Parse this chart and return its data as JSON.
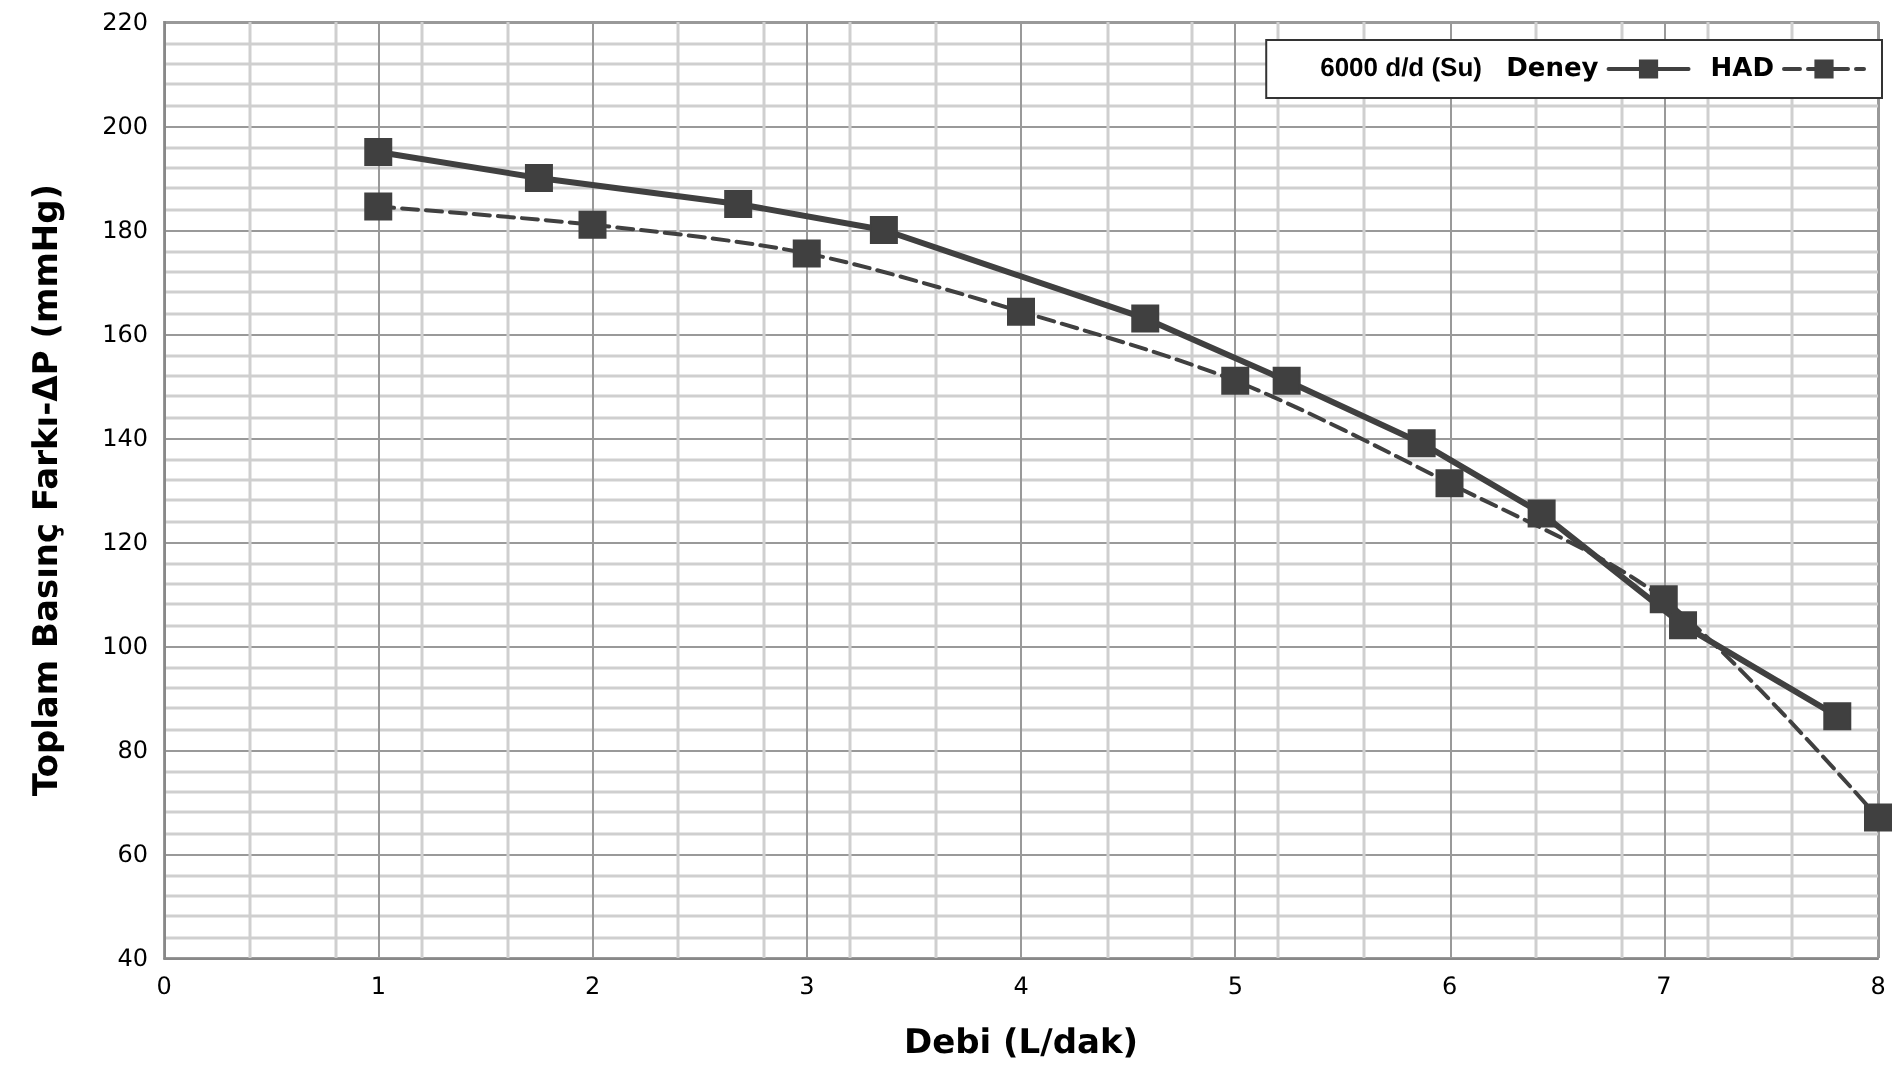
{
  "chart_data": {
    "type": "line",
    "xlabel": "Debi (L/dak)",
    "ylabel": "Toplam Basınç Farkı-ΔP (mmHg)",
    "legend_title": "6000 d/d (Su)",
    "xlim": [
      0,
      8
    ],
    "xticks": [
      0,
      1,
      2,
      3,
      4,
      5,
      6,
      7,
      8
    ],
    "ylim": [
      40,
      220
    ],
    "yticks": [
      40,
      60,
      80,
      100,
      120,
      140,
      160,
      180,
      200,
      220
    ],
    "grid": true,
    "legend": "top right",
    "marker": "square",
    "series": [
      {
        "name": "Deney",
        "color": "#404040",
        "line_style": "solid",
        "x": [
          1,
          1.75,
          2.68,
          3.36,
          4.58,
          5.24,
          5.87,
          6.43,
          7.09,
          7.81
        ],
        "values": [
          195,
          190,
          185,
          180,
          163,
          151,
          139,
          125.5,
          104,
          86.5
        ]
      },
      {
        "name": "HAD",
        "color": "#404040",
        "line_style": "dashed",
        "x": [
          1,
          2,
          3,
          4,
          5,
          6,
          7,
          8
        ],
        "values": [
          184.5,
          181,
          175.5,
          164.3,
          151,
          131.3,
          109,
          67
        ]
      }
    ]
  }
}
